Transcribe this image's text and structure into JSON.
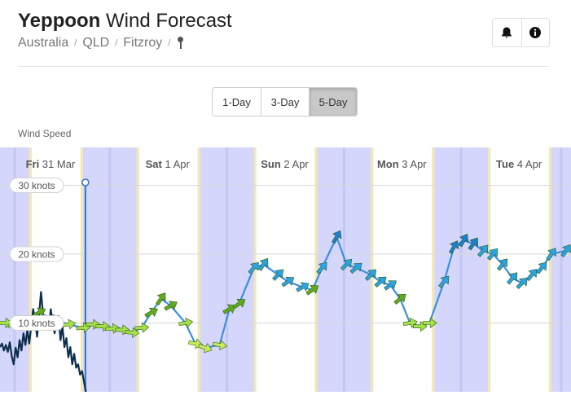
{
  "header": {
    "location": "Yeppoon",
    "title_suffix": "Wind Forecast",
    "breadcrumb": [
      "Australia",
      "QLD",
      "Fitzroy"
    ],
    "separator": "/"
  },
  "actions": [
    {
      "name": "alert",
      "icon": "bell-icon"
    },
    {
      "name": "info",
      "icon": "info-icon"
    }
  ],
  "range_options": [
    "1-Day",
    "3-Day",
    "5-Day"
  ],
  "range_selected": "5-Day",
  "section_label": "Wind Speed",
  "colors": {
    "night_band": "#d4d6fb",
    "day_band": "#ffffff",
    "day_edge": "#f3e7b0",
    "forecast_line": "#3b8fe0",
    "observed_line": "#0c2f4d",
    "now_marker": "#2f73c8"
  },
  "chart_data": {
    "type": "line",
    "y_unit": "knots",
    "ylim": [
      0,
      35.5
    ],
    "y_ticks": [
      {
        "value": 10,
        "label": "10 knots"
      },
      {
        "value": 20,
        "label": "20 knots"
      },
      {
        "value": 30,
        "label": "30 knots"
      }
    ],
    "grid": true,
    "x_range_hours": [
      -10,
      107
    ],
    "day_labels": [
      {
        "day": "Fri",
        "date": "31 Mar",
        "hour": 0
      },
      {
        "day": "Sat",
        "date": "1 Apr",
        "hour": 24
      },
      {
        "day": "Sun",
        "date": "2 Apr",
        "hour": 48
      },
      {
        "day": "Mon",
        "date": "3 Apr",
        "hour": 72
      },
      {
        "day": "Tue",
        "date": "4 Apr",
        "hour": 96
      }
    ],
    "night_bands_hours": [
      [
        -10,
        -4
      ],
      [
        7,
        18
      ],
      [
        31,
        42
      ],
      [
        55,
        66
      ],
      [
        79,
        90
      ],
      [
        103,
        107
      ]
    ],
    "now_hour": 7.5,
    "series": [
      {
        "kind": "forecast",
        "points": [
          {
            "h": -9,
            "v": 10.0,
            "dir": 90,
            "c": "#a4e04a"
          },
          {
            "h": -7,
            "v": 9.8,
            "dir": 75,
            "c": "#a4e04a"
          },
          {
            "h": -5,
            "v": 10.2,
            "dir": 80,
            "c": "#a4e04a"
          },
          {
            "h": -2,
            "v": 11.5,
            "dir": 60,
            "c": "#5faa1e"
          },
          {
            "h": 1,
            "v": 10.5,
            "dir": 70,
            "c": "#a4e04a"
          },
          {
            "h": 4,
            "v": 9.8,
            "dir": 80,
            "c": "#a4e04a"
          },
          {
            "h": 7,
            "v": 9.3,
            "dir": 85,
            "c": "#a4e04a"
          },
          {
            "h": 9,
            "v": 9.8,
            "dir": 90,
            "c": "#a4e04a"
          },
          {
            "h": 11,
            "v": 9.5,
            "dir": 90,
            "c": "#a4e04a"
          },
          {
            "h": 13,
            "v": 9.2,
            "dir": 85,
            "c": "#a4e04a"
          },
          {
            "h": 15,
            "v": 9.0,
            "dir": 90,
            "c": "#a4e04a"
          },
          {
            "h": 17,
            "v": 8.6,
            "dir": 95,
            "c": "#a4e04a"
          },
          {
            "h": 19,
            "v": 9.3,
            "dir": 85,
            "c": "#a4e04a"
          },
          {
            "h": 21,
            "v": 11.5,
            "dir": 60,
            "c": "#5faa1e"
          },
          {
            "h": 23,
            "v": 13.5,
            "dir": 35,
            "c": "#5faa1e"
          },
          {
            "h": 25,
            "v": 12.5,
            "dir": 60,
            "c": "#5faa1e"
          },
          {
            "h": 28,
            "v": 10.0,
            "dir": 80,
            "c": "#a4e04a"
          },
          {
            "h": 30,
            "v": 7.0,
            "dir": 100,
            "c": "#c9ec5a"
          },
          {
            "h": 32,
            "v": 6.4,
            "dir": 110,
            "c": "#c9ec5a"
          },
          {
            "h": 35,
            "v": 6.8,
            "dir": 100,
            "c": "#c9ec5a"
          },
          {
            "h": 37,
            "v": 12.0,
            "dir": 60,
            "c": "#5faa1e"
          },
          {
            "h": 39,
            "v": 12.8,
            "dir": 55,
            "c": "#5faa1e"
          },
          {
            "h": 42,
            "v": 18.0,
            "dir": 40,
            "c": "#2aa4e6"
          },
          {
            "h": 44,
            "v": 18.5,
            "dir": 35,
            "c": "#2aa4e6"
          },
          {
            "h": 47,
            "v": 17.0,
            "dir": 45,
            "c": "#2aa4e6"
          },
          {
            "h": 49,
            "v": 16.0,
            "dir": 55,
            "c": "#2aa4e6"
          },
          {
            "h": 52,
            "v": 15.2,
            "dir": 60,
            "c": "#2aa4e6"
          },
          {
            "h": 54,
            "v": 14.8,
            "dir": 55,
            "c": "#5faa1e"
          },
          {
            "h": 56,
            "v": 18.0,
            "dir": 40,
            "c": "#2aa4e6"
          },
          {
            "h": 59,
            "v": 22.5,
            "dir": 30,
            "c": "#1c7fd1"
          },
          {
            "h": 61,
            "v": 18.5,
            "dir": 45,
            "c": "#2aa4e6"
          },
          {
            "h": 63,
            "v": 18.0,
            "dir": 50,
            "c": "#2aa4e6"
          },
          {
            "h": 66,
            "v": 17.0,
            "dir": 45,
            "c": "#2aa4e6"
          },
          {
            "h": 68,
            "v": 16.0,
            "dir": 50,
            "c": "#2aa4e6"
          },
          {
            "h": 70,
            "v": 15.5,
            "dir": 55,
            "c": "#2aa4e6"
          },
          {
            "h": 72,
            "v": 13.5,
            "dir": 50,
            "c": "#5faa1e"
          },
          {
            "h": 74,
            "v": 10.0,
            "dir": 80,
            "c": "#a4e04a"
          },
          {
            "h": 76,
            "v": 9.5,
            "dir": 90,
            "c": "#a4e04a"
          },
          {
            "h": 78,
            "v": 10.0,
            "dir": 90,
            "c": "#a4e04a"
          },
          {
            "h": 81,
            "v": 16.0,
            "dir": 40,
            "c": "#2aa4e6"
          },
          {
            "h": 83,
            "v": 21.0,
            "dir": 30,
            "c": "#1c7fd1"
          },
          {
            "h": 85,
            "v": 22.0,
            "dir": 30,
            "c": "#1c7fd1"
          },
          {
            "h": 87,
            "v": 21.5,
            "dir": 35,
            "c": "#1c7fd1"
          },
          {
            "h": 89,
            "v": 20.5,
            "dir": 40,
            "c": "#2aa4e6"
          },
          {
            "h": 91,
            "v": 20.0,
            "dir": 40,
            "c": "#2aa4e6"
          },
          {
            "h": 93,
            "v": 18.5,
            "dir": 40,
            "c": "#2aa4e6"
          },
          {
            "h": 95,
            "v": 16.5,
            "dir": 40,
            "c": "#2aa4e6"
          },
          {
            "h": 97,
            "v": 15.8,
            "dir": 45,
            "c": "#2aa4e6"
          },
          {
            "h": 99,
            "v": 17.0,
            "dir": 40,
            "c": "#2aa4e6"
          },
          {
            "h": 101,
            "v": 18.0,
            "dir": 40,
            "c": "#2aa4e6"
          },
          {
            "h": 103,
            "v": 20.0,
            "dir": 35,
            "c": "#2aa4e6"
          },
          {
            "h": 106,
            "v": 20.5,
            "dir": 35,
            "c": "#2aa4e6"
          }
        ]
      },
      {
        "kind": "observed",
        "points": [
          {
            "h": -10,
            "v": 6.5
          },
          {
            "h": -9.6,
            "v": 7.0
          },
          {
            "h": -9.2,
            "v": 6.0
          },
          {
            "h": -8.8,
            "v": 6.8
          },
          {
            "h": -8.4,
            "v": 5.8
          },
          {
            "h": -8.0,
            "v": 7.2
          },
          {
            "h": -7.6,
            "v": 5.2
          },
          {
            "h": -7.2,
            "v": 4.0
          },
          {
            "h": -6.8,
            "v": 6.4
          },
          {
            "h": -6.4,
            "v": 5.0
          },
          {
            "h": -6.0,
            "v": 7.5
          },
          {
            "h": -5.6,
            "v": 6.0
          },
          {
            "h": -5.2,
            "v": 8.5
          },
          {
            "h": -4.8,
            "v": 6.8
          },
          {
            "h": -4.4,
            "v": 9.0
          },
          {
            "h": -4.0,
            "v": 7.0
          },
          {
            "h": -3.6,
            "v": 9.5
          },
          {
            "h": -3.2,
            "v": 12.0
          },
          {
            "h": -2.8,
            "v": 10.5
          },
          {
            "h": -2.4,
            "v": 8.0
          },
          {
            "h": -2.0,
            "v": 11.0
          },
          {
            "h": -1.6,
            "v": 14.5
          },
          {
            "h": -1.2,
            "v": 11.5
          },
          {
            "h": -0.8,
            "v": 9.5
          },
          {
            "h": -0.4,
            "v": 11.0
          },
          {
            "h": 0.0,
            "v": 9.0
          },
          {
            "h": 0.4,
            "v": 12.0
          },
          {
            "h": 0.8,
            "v": 10.0
          },
          {
            "h": 1.2,
            "v": 8.5
          },
          {
            "h": 1.6,
            "v": 10.5
          },
          {
            "h": 2.0,
            "v": 11.0
          },
          {
            "h": 2.4,
            "v": 7.5
          },
          {
            "h": 2.8,
            "v": 9.5
          },
          {
            "h": 3.2,
            "v": 6.5
          },
          {
            "h": 3.6,
            "v": 7.8
          },
          {
            "h": 4.0,
            "v": 5.0
          },
          {
            "h": 4.4,
            "v": 6.5
          },
          {
            "h": 4.8,
            "v": 4.0
          },
          {
            "h": 5.2,
            "v": 5.5
          },
          {
            "h": 5.6,
            "v": 3.5
          },
          {
            "h": 6.0,
            "v": 4.0
          },
          {
            "h": 6.4,
            "v": 2.5
          },
          {
            "h": 6.8,
            "v": 3.0
          },
          {
            "h": 7.2,
            "v": 1.5
          },
          {
            "h": 7.6,
            "v": 0.0
          }
        ]
      }
    ]
  }
}
